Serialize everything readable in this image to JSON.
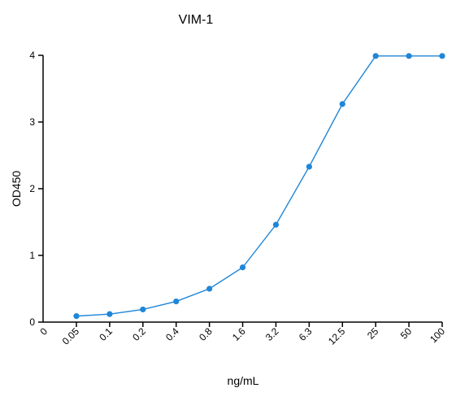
{
  "chart_data": {
    "type": "line",
    "title": "VIM-1",
    "xlabel": "ng/mL",
    "ylabel": "OD450",
    "x_origin_label": "0",
    "categories": [
      "0.05",
      "0.1",
      "0.2",
      "0.4",
      "0.8",
      "1.6",
      "3.2",
      "6.3",
      "12.5",
      "25",
      "50",
      "100"
    ],
    "series": [
      {
        "values": [
          0.09,
          0.12,
          0.19,
          0.31,
          0.5,
          0.82,
          1.46,
          2.33,
          3.27,
          3.99,
          3.99,
          3.99
        ]
      }
    ],
    "ylim": [
      0,
      4
    ],
    "yticks": [
      0,
      1,
      2,
      3,
      4
    ],
    "grid": false,
    "color": "#1f86d8"
  }
}
